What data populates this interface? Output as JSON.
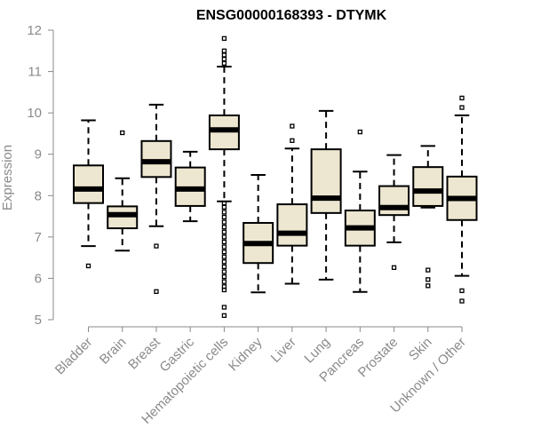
{
  "chart_data": {
    "type": "boxplot",
    "title": "ENSG00000168393 - DTYMK",
    "xlabel": "",
    "ylabel": "Expression",
    "ylim": [
      5,
      12
    ],
    "yticks": [
      5,
      6,
      7,
      8,
      9,
      10,
      11,
      12
    ],
    "ytick_labels": [
      "5",
      "6",
      "7",
      "8",
      "9",
      "10",
      "11",
      "12"
    ],
    "box_color": "#ede7d1",
    "categories": [
      "Bladder",
      "Brain",
      "Breast",
      "Gastric",
      "Hematopoietic cells",
      "Kidney",
      "Liver",
      "Lung",
      "Pancreas",
      "Prostate",
      "Skin",
      "Unknown / Other"
    ],
    "series": [
      {
        "name": "Bladder",
        "min": 6.78,
        "q1": 7.82,
        "median": 8.16,
        "q3": 8.73,
        "max": 9.82,
        "outliers": [
          6.3
        ]
      },
      {
        "name": "Brain",
        "min": 6.67,
        "q1": 7.21,
        "median": 7.54,
        "q3": 7.74,
        "max": 8.42,
        "outliers": [
          9.52
        ]
      },
      {
        "name": "Breast",
        "min": 7.26,
        "q1": 8.45,
        "median": 8.82,
        "q3": 9.32,
        "max": 10.2,
        "outliers": [
          6.78,
          5.68
        ]
      },
      {
        "name": "Gastric",
        "min": 7.38,
        "q1": 7.75,
        "median": 8.16,
        "q3": 8.68,
        "max": 9.06,
        "outliers": []
      },
      {
        "name": "Hematopoietic cells",
        "min": 7.86,
        "q1": 9.12,
        "median": 9.59,
        "q3": 9.94,
        "max": 11.12,
        "outliers": [
          11.8,
          11.5,
          11.4,
          11.3,
          11.2,
          7.82,
          7.72,
          7.6,
          7.48,
          7.36,
          7.24,
          7.12,
          7.0,
          6.88,
          6.76,
          6.64,
          6.52,
          6.4,
          6.28,
          6.16,
          6.04,
          5.92,
          5.8,
          5.72,
          5.3,
          5.1
        ]
      },
      {
        "name": "Kidney",
        "min": 5.66,
        "q1": 6.37,
        "median": 6.84,
        "q3": 7.34,
        "max": 8.5,
        "outliers": []
      },
      {
        "name": "Liver",
        "min": 5.87,
        "q1": 6.79,
        "median": 7.09,
        "q3": 7.79,
        "max": 9.14,
        "outliers": [
          9.33,
          9.68
        ]
      },
      {
        "name": "Lung",
        "min": 5.97,
        "q1": 7.58,
        "median": 7.94,
        "q3": 9.12,
        "max": 10.05,
        "outliers": []
      },
      {
        "name": "Pancreas",
        "min": 5.67,
        "q1": 6.79,
        "median": 7.22,
        "q3": 7.64,
        "max": 8.58,
        "outliers": [
          9.54
        ]
      },
      {
        "name": "Prostate",
        "min": 6.87,
        "q1": 7.53,
        "median": 7.71,
        "q3": 8.23,
        "max": 8.98,
        "outliers": [
          6.26
        ]
      },
      {
        "name": "Skin",
        "min": 7.71,
        "q1": 7.75,
        "median": 8.11,
        "q3": 8.69,
        "max": 9.2,
        "outliers": [
          6.2,
          5.97,
          5.82
        ]
      },
      {
        "name": "Unknown / Other",
        "min": 6.06,
        "q1": 7.41,
        "median": 7.93,
        "q3": 8.46,
        "max": 9.94,
        "outliers": [
          10.13,
          10.36,
          5.7,
          5.45
        ]
      }
    ]
  }
}
